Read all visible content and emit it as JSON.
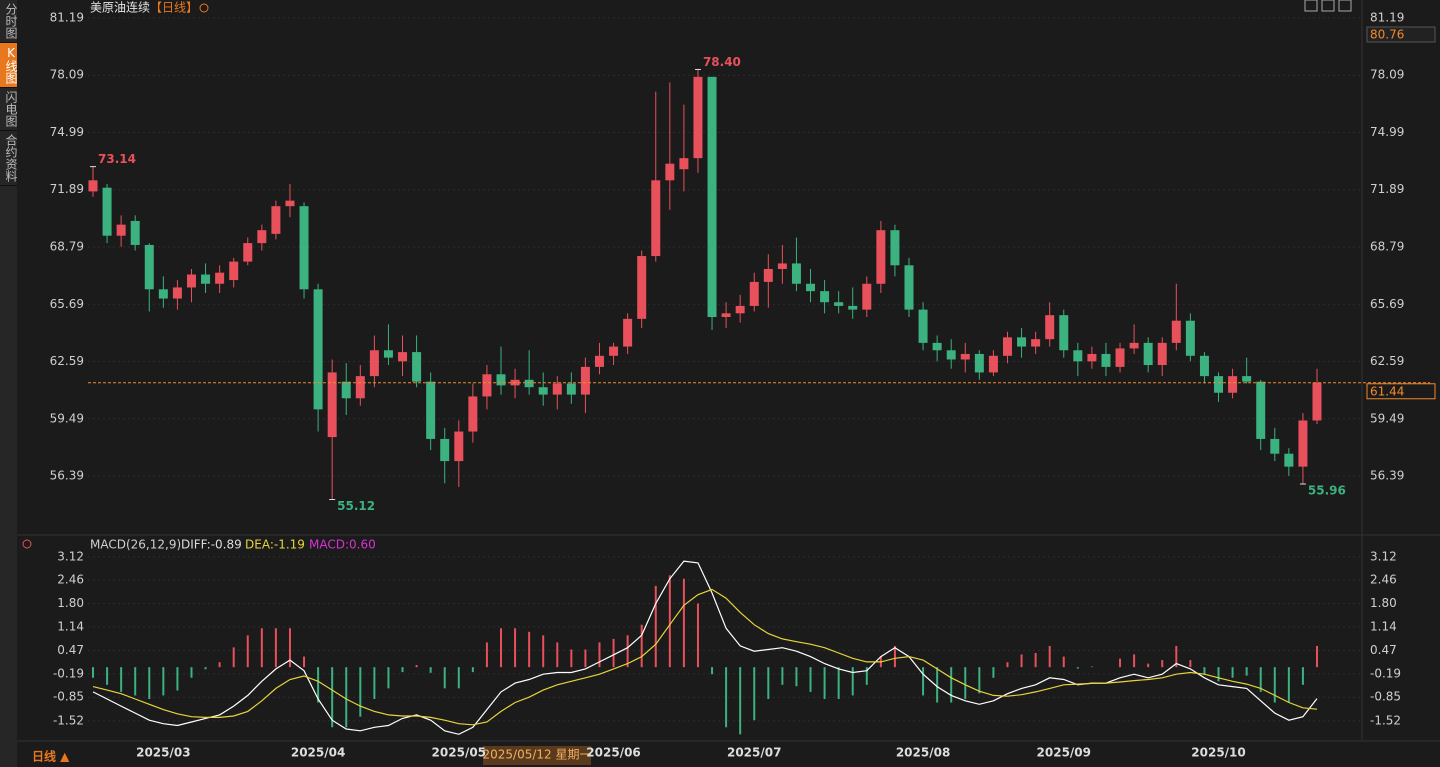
{
  "sidebar": {
    "tabs": [
      "分时图",
      "K线图",
      "闪电图",
      "合约资料"
    ]
  },
  "chart_data": [
    {
      "type": "candlestick",
      "title": "美原油连续",
      "subtitle": "【日线】",
      "categories": [
        null,
        null,
        null,
        null,
        null,
        "2025/03",
        null,
        null,
        null,
        null,
        null,
        null,
        null,
        null,
        null,
        null,
        "2025/04",
        null,
        null,
        null,
        null,
        null,
        null,
        null,
        null,
        null,
        "2025/05",
        null,
        null,
        null,
        null,
        null,
        null,
        null,
        null,
        null,
        null,
        "2025/06",
        null,
        null,
        null,
        null,
        null,
        null,
        null,
        null,
        null,
        "2025/07",
        null,
        null,
        null,
        null,
        null,
        null,
        null,
        null,
        null,
        null,
        null,
        "2025/08",
        null,
        null,
        null,
        null,
        null,
        null,
        null,
        null,
        null,
        "2025/09",
        null,
        null,
        null,
        null,
        null,
        null,
        null,
        null,
        null,
        null,
        "2025/10",
        null,
        null,
        null,
        null,
        null,
        null,
        null
      ],
      "candles": [
        [
          71.8,
          73.14,
          71.5,
          72.4
        ],
        [
          72.0,
          72.2,
          69.0,
          69.4
        ],
        [
          69.4,
          70.5,
          68.8,
          70.0
        ],
        [
          70.2,
          70.5,
          68.6,
          68.9
        ],
        [
          68.9,
          69.0,
          65.3,
          66.5
        ],
        [
          66.5,
          67.2,
          65.5,
          66.0
        ],
        [
          66.0,
          67.0,
          65.4,
          66.6
        ],
        [
          66.6,
          67.6,
          65.8,
          67.3
        ],
        [
          67.3,
          67.9,
          66.3,
          66.8
        ],
        [
          66.8,
          67.8,
          66.3,
          67.4
        ],
        [
          67.0,
          68.2,
          66.6,
          68.0
        ],
        [
          68.0,
          69.3,
          67.8,
          69.0
        ],
        [
          69.0,
          70.0,
          68.6,
          69.7
        ],
        [
          69.5,
          71.3,
          69.2,
          71.0
        ],
        [
          71.0,
          72.2,
          70.4,
          71.3
        ],
        [
          71.0,
          71.2,
          66.0,
          66.5
        ],
        [
          66.5,
          66.8,
          58.8,
          60.0
        ],
        [
          58.5,
          62.7,
          55.12,
          62.0
        ],
        [
          61.5,
          62.5,
          59.7,
          60.6
        ],
        [
          60.6,
          62.4,
          60.2,
          61.8
        ],
        [
          61.8,
          64.0,
          61.2,
          63.2
        ],
        [
          63.2,
          64.6,
          62.4,
          62.8
        ],
        [
          62.6,
          64.0,
          61.8,
          63.1
        ],
        [
          63.1,
          64.0,
          61.2,
          61.5
        ],
        [
          61.5,
          62.0,
          57.8,
          58.4
        ],
        [
          58.4,
          59.0,
          56.0,
          57.2
        ],
        [
          57.2,
          59.4,
          55.8,
          58.8
        ],
        [
          58.8,
          61.4,
          58.2,
          60.7
        ],
        [
          60.7,
          62.4,
          60.0,
          61.9
        ],
        [
          61.9,
          63.4,
          60.8,
          61.3
        ],
        [
          61.3,
          62.2,
          60.6,
          61.6
        ],
        [
          61.6,
          63.2,
          60.8,
          61.2
        ],
        [
          61.2,
          62.0,
          60.2,
          60.8
        ],
        [
          60.8,
          61.8,
          60.0,
          61.4
        ],
        [
          61.4,
          62.0,
          60.3,
          60.8
        ],
        [
          60.8,
          62.8,
          59.8,
          62.3
        ],
        [
          62.3,
          63.6,
          61.9,
          62.9
        ],
        [
          62.9,
          63.6,
          62.4,
          63.4
        ],
        [
          63.4,
          65.2,
          63.0,
          64.9
        ],
        [
          64.9,
          68.6,
          64.4,
          68.3
        ],
        [
          68.3,
          77.2,
          68.0,
          72.4
        ],
        [
          72.4,
          77.7,
          70.8,
          73.3
        ],
        [
          73.0,
          76.5,
          71.8,
          73.6
        ],
        [
          73.6,
          78.4,
          72.8,
          78.0
        ],
        [
          78.0,
          78.0,
          64.3,
          65.0
        ],
        [
          65.0,
          65.8,
          64.4,
          65.2
        ],
        [
          65.2,
          66.2,
          64.7,
          65.6
        ],
        [
          65.6,
          67.4,
          65.3,
          66.9
        ],
        [
          66.9,
          68.4,
          65.5,
          67.6
        ],
        [
          67.6,
          68.9,
          66.8,
          67.9
        ],
        [
          67.9,
          69.3,
          66.4,
          66.8
        ],
        [
          66.8,
          67.6,
          65.8,
          66.4
        ],
        [
          66.4,
          67.0,
          65.2,
          65.8
        ],
        [
          65.8,
          66.4,
          65.2,
          65.6
        ],
        [
          65.6,
          66.6,
          64.9,
          65.4
        ],
        [
          65.4,
          67.2,
          65.0,
          66.8
        ],
        [
          66.8,
          70.2,
          66.3,
          69.7
        ],
        [
          69.7,
          70.0,
          67.2,
          67.8
        ],
        [
          67.8,
          68.2,
          65.0,
          65.4
        ],
        [
          65.4,
          65.8,
          63.2,
          63.6
        ],
        [
          63.6,
          64.0,
          62.6,
          63.2
        ],
        [
          63.2,
          63.8,
          62.2,
          62.7
        ],
        [
          62.7,
          63.6,
          62.0,
          63.0
        ],
        [
          63.0,
          63.2,
          61.6,
          62.0
        ],
        [
          62.0,
          63.2,
          61.8,
          62.9
        ],
        [
          62.9,
          64.2,
          62.5,
          63.9
        ],
        [
          63.9,
          64.4,
          62.8,
          63.4
        ],
        [
          63.4,
          64.2,
          63.0,
          63.8
        ],
        [
          63.8,
          65.8,
          63.4,
          65.1
        ],
        [
          65.1,
          65.4,
          62.8,
          63.2
        ],
        [
          63.2,
          63.6,
          61.8,
          62.6
        ],
        [
          62.6,
          63.4,
          62.2,
          63.0
        ],
        [
          63.0,
          63.6,
          61.8,
          62.3
        ],
        [
          62.3,
          63.6,
          62.0,
          63.3
        ],
        [
          63.3,
          64.6,
          63.0,
          63.6
        ],
        [
          63.6,
          63.9,
          62.0,
          62.4
        ],
        [
          62.4,
          63.9,
          61.8,
          63.6
        ],
        [
          63.6,
          66.8,
          63.2,
          64.8
        ],
        [
          64.8,
          65.2,
          62.6,
          62.9
        ],
        [
          62.9,
          63.1,
          61.4,
          61.8
        ],
        [
          61.8,
          62.0,
          60.4,
          60.9
        ],
        [
          60.9,
          62.2,
          60.6,
          61.8
        ],
        [
          61.8,
          62.8,
          61.4,
          61.5
        ],
        [
          61.5,
          61.6,
          57.8,
          58.4
        ],
        [
          58.4,
          59.0,
          57.2,
          57.6
        ],
        [
          57.6,
          57.9,
          56.4,
          56.9
        ],
        [
          56.9,
          59.8,
          55.96,
          59.4
        ],
        [
          59.4,
          62.2,
          59.2,
          61.44
        ]
      ],
      "up_color": "#e8505b",
      "down_color": "#3bb27f",
      "ylim": [
        53.47,
        81.89
      ],
      "yticks": [
        56.39,
        59.49,
        62.59,
        65.69,
        68.79,
        71.89,
        74.99,
        78.09,
        81.19
      ],
      "grid": true,
      "extreme_labels": [
        "73.14",
        "55.12",
        "78.40",
        "55.96"
      ],
      "last_price": 61.44,
      "last_price_color": "#f08a2c",
      "crosshair_price": 80.76,
      "crosshair_date": "2025/05/12 星期一",
      "period_label": "日线 ▲"
    },
    {
      "type": "macd",
      "title": "MACD(26,12,9)",
      "legend": [
        {
          "label": "DIFF:-0.89",
          "color": "#dddddd"
        },
        {
          "label": "DEA:-1.19",
          "color": "#e6d43a"
        },
        {
          "label": "MACD:0.60",
          "color": "#d633d6"
        }
      ],
      "series": [
        {
          "color": "#ffffff",
          "values": [
            -0.7,
            -0.9,
            -1.1,
            -1.3,
            -1.5,
            -1.6,
            -1.65,
            -1.55,
            -1.45,
            -1.35,
            -1.1,
            -0.8,
            -0.4,
            -0.05,
            0.2,
            -0.1,
            -0.9,
            -1.5,
            -1.75,
            -1.8,
            -1.7,
            -1.65,
            -1.45,
            -1.35,
            -1.5,
            -1.8,
            -1.9,
            -1.7,
            -1.2,
            -0.7,
            -0.45,
            -0.35,
            -0.2,
            -0.15,
            -0.15,
            -0.05,
            0.15,
            0.35,
            0.55,
            0.9,
            1.8,
            2.5,
            3.0,
            2.95,
            2.1,
            1.1,
            0.6,
            0.45,
            0.5,
            0.55,
            0.45,
            0.3,
            0.1,
            -0.05,
            -0.15,
            -0.1,
            0.3,
            0.55,
            0.3,
            -0.2,
            -0.55,
            -0.8,
            -0.95,
            -1.05,
            -0.95,
            -0.75,
            -0.6,
            -0.5,
            -0.3,
            -0.35,
            -0.5,
            -0.45,
            -0.45,
            -0.3,
            -0.2,
            -0.3,
            -0.2,
            0.1,
            -0.05,
            -0.3,
            -0.5,
            -0.55,
            -0.6,
            -0.95,
            -1.3,
            -1.5,
            -1.4,
            -0.89
          ]
        },
        {
          "color": "#e6d43a",
          "values": [
            -0.55,
            -0.65,
            -0.75,
            -0.9,
            -1.05,
            -1.2,
            -1.32,
            -1.4,
            -1.42,
            -1.42,
            -1.38,
            -1.25,
            -0.95,
            -0.6,
            -0.35,
            -0.25,
            -0.4,
            -0.65,
            -0.9,
            -1.1,
            -1.25,
            -1.35,
            -1.38,
            -1.38,
            -1.42,
            -1.5,
            -1.6,
            -1.63,
            -1.55,
            -1.25,
            -1.0,
            -0.85,
            -0.65,
            -0.5,
            -0.4,
            -0.3,
            -0.2,
            -0.05,
            0.1,
            0.3,
            0.65,
            1.2,
            1.75,
            2.05,
            2.2,
            1.95,
            1.55,
            1.2,
            0.95,
            0.8,
            0.72,
            0.65,
            0.55,
            0.4,
            0.25,
            0.15,
            0.15,
            0.25,
            0.3,
            0.2,
            -0.05,
            -0.3,
            -0.5,
            -0.68,
            -0.8,
            -0.82,
            -0.78,
            -0.7,
            -0.6,
            -0.5,
            -0.48,
            -0.46,
            -0.45,
            -0.42,
            -0.38,
            -0.35,
            -0.3,
            -0.2,
            -0.15,
            -0.2,
            -0.3,
            -0.4,
            -0.48,
            -0.6,
            -0.8,
            -1.0,
            -1.15,
            -1.19
          ]
        }
      ],
      "histogram": {
        "up_color": "#e8505b",
        "down_color": "#3bb27f",
        "values": [
          -0.3,
          -0.5,
          -0.7,
          -0.8,
          -0.9,
          -0.8,
          -0.66,
          -0.3,
          -0.06,
          0.14,
          0.56,
          0.9,
          1.1,
          1.1,
          1.1,
          0.3,
          -1.0,
          -1.7,
          -1.7,
          -1.4,
          -0.9,
          -0.6,
          -0.14,
          0.06,
          -0.16,
          -0.6,
          -0.6,
          -0.14,
          0.7,
          1.1,
          1.1,
          1.0,
          0.9,
          0.7,
          0.5,
          0.5,
          0.7,
          0.8,
          0.9,
          1.2,
          2.3,
          2.6,
          2.5,
          1.8,
          -0.2,
          -1.7,
          -1.9,
          -1.5,
          -0.9,
          -0.5,
          -0.54,
          -0.7,
          -0.9,
          -0.9,
          -0.8,
          -0.5,
          0.3,
          0.6,
          0.0,
          -0.8,
          -1.0,
          -1.0,
          -0.9,
          -0.74,
          -0.3,
          0.14,
          0.36,
          0.4,
          0.6,
          0.3,
          -0.04,
          0.02,
          0.0,
          0.24,
          0.36,
          0.1,
          0.2,
          0.6,
          0.2,
          -0.2,
          -0.4,
          -0.3,
          -0.24,
          -0.7,
          -1.0,
          -1.0,
          -0.5,
          0.6
        ]
      },
      "ylim": [
        -2.06,
        3.37
      ],
      "yticks": [
        3.12,
        2.46,
        {
          "value": 1.8,
          "label": "1.80"
        },
        1.14,
        0.47,
        -0.19,
        -0.85,
        -1.52
      ],
      "grid": true
    }
  ]
}
